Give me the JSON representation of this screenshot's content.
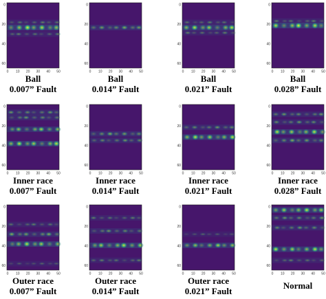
{
  "axes": {
    "xticks": [
      0,
      10,
      20,
      30,
      40,
      50
    ],
    "yticks": [
      0,
      20,
      40,
      60
    ]
  },
  "panels": [
    {
      "caption": [
        "Ball",
        "0.007” Fault"
      ]
    },
    {
      "caption": [
        "Ball",
        "0.014” Fault"
      ]
    },
    {
      "caption": [
        "Ball",
        "0.021” Fault"
      ]
    },
    {
      "caption": [
        "Ball",
        "0.028” Fault"
      ]
    },
    {
      "caption": [
        "Inner race",
        "0.007” Fault"
      ]
    },
    {
      "caption": [
        "Inner race",
        "0.014” Fault"
      ]
    },
    {
      "caption": [
        "Inner race",
        "0.021” Fault"
      ]
    },
    {
      "caption": [
        "Inner race",
        "0.028” Fault"
      ]
    },
    {
      "caption": [
        "Outer race",
        "0.007” Fault"
      ]
    },
    {
      "caption": [
        "Outer race",
        "0.014” Fault"
      ]
    },
    {
      "caption": [
        "Outer race",
        "0.021” Fault"
      ]
    },
    {
      "caption": [
        "Normal"
      ]
    }
  ]
}
